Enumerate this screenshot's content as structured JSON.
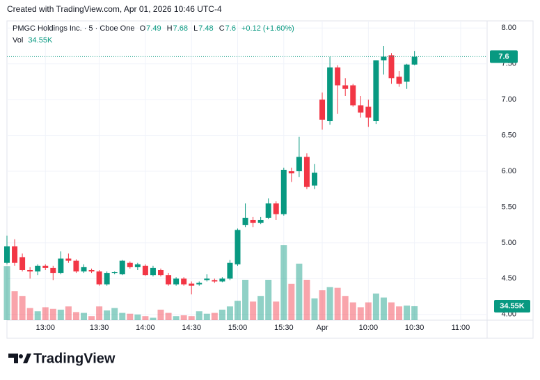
{
  "chart_data": {
    "type": "candlestick",
    "attribution": "Created with TradingView.com, Apr 01, 2026 10:46 UTC-4",
    "title": "PMGC Holdings Inc. · 5 · Cboe One",
    "ohlc_labels": [
      "O",
      "H",
      "L",
      "C"
    ],
    "change_label": "+0.12 (+1.60%)",
    "logo": "TradingView",
    "up_color": "#089981",
    "down_color": "#f23645",
    "categories": [
      null,
      null,
      null,
      null,
      null,
      "13:00",
      null,
      null,
      null,
      null,
      null,
      null,
      "13:30",
      null,
      null,
      null,
      null,
      null,
      "14:00",
      null,
      null,
      null,
      null,
      null,
      "14:30",
      null,
      null,
      null,
      null,
      null,
      "15:00",
      null,
      null,
      null,
      null,
      null,
      "15:30",
      null,
      null,
      null,
      null,
      "Apr",
      null,
      null,
      null,
      null,
      null,
      "10:00",
      null,
      null,
      null,
      null,
      null,
      "10:30",
      null,
      null,
      null,
      null,
      null,
      "11:00"
    ],
    "open": [
      4.72,
      4.95,
      4.8,
      4.62,
      4.6,
      4.68,
      4.65,
      4.58,
      4.78,
      4.75,
      4.6,
      4.62,
      4.6,
      4.42,
      4.58,
      4.56,
      4.72,
      4.66,
      4.68,
      4.55,
      4.62,
      4.55,
      4.42,
      4.5,
      4.43,
      4.42,
      4.48,
      4.48,
      4.46,
      4.5,
      4.7,
      5.25,
      5.32,
      5.28,
      5.35,
      5.55,
      5.4,
      6.0,
      6.0,
      6.2,
      5.8,
      7.0,
      6.7,
      7.45,
      7.2,
      7.2,
      6.92,
      6.9,
      6.7,
      7.55,
      7.62,
      7.32,
      7.25,
      7.49,
      null,
      null,
      null,
      null,
      null,
      null
    ],
    "high": [
      5.1,
      5.05,
      4.85,
      4.66,
      4.7,
      4.7,
      4.68,
      4.88,
      4.85,
      4.77,
      4.7,
      4.64,
      4.62,
      4.6,
      4.6,
      4.76,
      4.74,
      4.72,
      4.7,
      4.68,
      4.64,
      4.58,
      4.52,
      4.52,
      4.46,
      4.46,
      4.56,
      4.5,
      4.52,
      4.76,
      5.2,
      5.55,
      5.36,
      5.36,
      5.62,
      5.58,
      6.05,
      6.05,
      6.48,
      6.25,
      6.1,
      7.1,
      7.6,
      7.48,
      7.3,
      7.22,
      7.05,
      7.0,
      7.55,
      7.75,
      7.65,
      7.4,
      7.5,
      7.68,
      null,
      null,
      null,
      null,
      null,
      null
    ],
    "low": [
      4.7,
      4.68,
      4.6,
      4.5,
      4.55,
      4.62,
      4.48,
      4.56,
      4.72,
      4.58,
      4.58,
      4.58,
      4.4,
      4.4,
      4.56,
      4.55,
      4.64,
      4.62,
      4.54,
      4.53,
      4.53,
      4.4,
      4.4,
      4.4,
      4.28,
      4.4,
      4.46,
      4.44,
      4.45,
      4.48,
      4.68,
      5.22,
      5.22,
      5.26,
      5.33,
      5.32,
      5.38,
      5.85,
      5.92,
      5.75,
      5.75,
      6.58,
      6.65,
      6.8,
      7.05,
      6.9,
      6.75,
      6.62,
      6.66,
      7.35,
      7.22,
      7.18,
      7.15,
      7.48,
      null,
      null,
      null,
      null,
      null,
      null
    ],
    "close": [
      4.95,
      4.72,
      4.62,
      4.6,
      4.68,
      4.65,
      4.58,
      4.78,
      4.75,
      4.6,
      4.66,
      4.6,
      4.42,
      4.58,
      4.59,
      4.75,
      4.66,
      4.7,
      4.55,
      4.65,
      4.55,
      4.42,
      4.5,
      4.42,
      4.4,
      4.44,
      4.5,
      4.46,
      4.5,
      4.72,
      5.18,
      5.35,
      5.28,
      5.32,
      5.55,
      5.4,
      6.02,
      5.97,
      6.2,
      5.78,
      5.98,
      6.72,
      7.45,
      7.2,
      7.15,
      6.92,
      6.82,
      6.75,
      7.55,
      7.6,
      7.3,
      7.22,
      7.49,
      7.6,
      null,
      null,
      null,
      null,
      null,
      null
    ],
    "volume": {
      "name": "Vol",
      "values": [
        134,
        72,
        60,
        30,
        22,
        32,
        28,
        26,
        34,
        20,
        18,
        10,
        34,
        24,
        30,
        18,
        16,
        14,
        10,
        6,
        26,
        18,
        10,
        12,
        10,
        22,
        16,
        18,
        26,
        34,
        48,
        100,
        46,
        60,
        100,
        46,
        186,
        90,
        140,
        100,
        54,
        74,
        82,
        80,
        60,
        44,
        32,
        44,
        66,
        56,
        44,
        34,
        36,
        34.55,
        null,
        null,
        null,
        null,
        null,
        null
      ],
      "value_labels": [
        null,
        null,
        null,
        null,
        null,
        null,
        null,
        null,
        null,
        null,
        null,
        null,
        null,
        null,
        null,
        null,
        null,
        null,
        null,
        null,
        null,
        null,
        null,
        null,
        null,
        null,
        null,
        null,
        null,
        null,
        null,
        null,
        null,
        null,
        null,
        null,
        null,
        null,
        null,
        null,
        null,
        null,
        null,
        null,
        null,
        null,
        null,
        null,
        null,
        null,
        null,
        null,
        null,
        "34.55K",
        null,
        null,
        null,
        null,
        null,
        null
      ]
    },
    "ylim": [
      3.92,
      8.1
    ],
    "yticks": [
      {
        "value": 4,
        "label": "4.00"
      },
      {
        "value": 4.5,
        "label": "4.50"
      },
      {
        "value": 5,
        "label": "5.00"
      },
      {
        "value": 5.5,
        "label": "5.50"
      },
      {
        "value": 6,
        "label": "6.00"
      },
      {
        "value": 6.5,
        "label": "6.50"
      },
      {
        "value": 7,
        "label": "7.00"
      },
      {
        "value": 7.5,
        "label": "7.50"
      },
      {
        "value": 8,
        "label": "8.00"
      }
    ],
    "grid": true
  }
}
